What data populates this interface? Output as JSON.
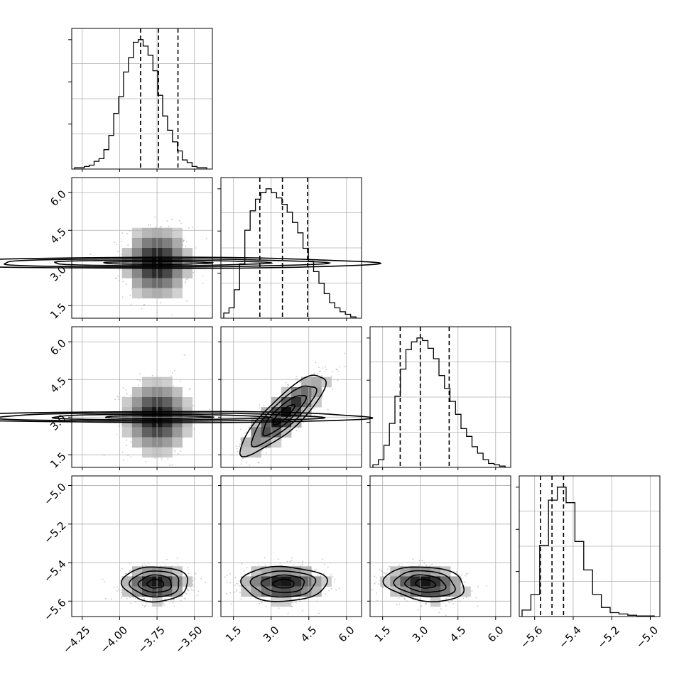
{
  "chart_data": {
    "type": "corner",
    "grid": true,
    "parameters": [
      {
        "range": [
          -4.32,
          -3.38
        ],
        "ticks": [
          -4.25,
          -4.0,
          -3.75,
          -3.5
        ],
        "tick_labels": [
          "−4.25",
          "−4.00",
          "−3.75",
          "−3.50"
        ],
        "quantiles": [
          -3.86,
          -3.74,
          -3.61
        ],
        "hist_peak": 0.42,
        "hist": [
          0.01,
          0.01,
          0.02,
          0.03,
          0.06,
          0.08,
          0.15,
          0.26,
          0.43,
          0.56,
          0.75,
          0.86,
          0.98,
          1.0,
          0.95,
          0.88,
          0.76,
          0.57,
          0.41,
          0.3,
          0.21,
          0.14,
          0.07,
          0.05,
          0.02,
          0.01,
          0.01
        ]
      },
      {
        "range": [
          1.0,
          6.6
        ],
        "ticks": [
          1.5,
          3.0,
          4.5,
          6.0
        ],
        "tick_labels": [
          "1.5",
          "3.0",
          "4.5",
          "6.0"
        ],
        "quantiles": [
          2.55,
          3.45,
          4.45
        ],
        "hist_peak": 0.5,
        "hist": [
          0.04,
          0.08,
          0.22,
          0.42,
          0.68,
          0.83,
          0.92,
          0.97,
          1.0,
          0.97,
          0.93,
          0.88,
          0.82,
          0.74,
          0.66,
          0.54,
          0.44,
          0.36,
          0.27,
          0.19,
          0.12,
          0.08,
          0.05,
          0.03,
          0.01
        ]
      },
      {
        "range": [
          1.0,
          6.6
        ],
        "ticks": [
          1.5,
          3.0,
          4.5,
          6.0
        ],
        "tick_labels": [
          "1.5",
          "3.0",
          "4.5",
          "6.0"
        ],
        "quantiles": [
          2.2,
          3.0,
          4.15
        ],
        "hist_peak": 0.45,
        "hist": [
          0.02,
          0.06,
          0.17,
          0.34,
          0.55,
          0.76,
          0.91,
          0.97,
          1.0,
          0.98,
          0.92,
          0.84,
          0.71,
          0.61,
          0.51,
          0.41,
          0.3,
          0.24,
          0.16,
          0.11,
          0.06,
          0.03,
          0.02,
          0.01
        ]
      },
      {
        "range": [
          -5.68,
          -4.95
        ],
        "ticks": [
          -5.6,
          -5.4,
          -5.2,
          -5.0
        ],
        "tick_labels": [
          "−5.6",
          "−5.4",
          "−5.2",
          "−5.0"
        ],
        "quantiles": [
          -5.57,
          -5.51,
          -5.45
        ],
        "hist_peak": 0.6,
        "hist": [
          0.05,
          0.17,
          0.55,
          0.9,
          1.0,
          0.88,
          0.58,
          0.36,
          0.17,
          0.07,
          0.03,
          0.02,
          0.01,
          0.005,
          0.005
        ]
      }
    ],
    "pairs": [
      {
        "row": 1,
        "col": 0,
        "mean": [
          -3.75,
          3.2
        ],
        "sd": [
          0.11,
          0.72
        ],
        "rho": 0.0
      },
      {
        "row": 2,
        "col": 0,
        "mean": [
          -3.75,
          3.0
        ],
        "sd": [
          0.11,
          0.72
        ],
        "rho": 0.0
      },
      {
        "row": 2,
        "col": 1,
        "mean": [
          3.5,
          3.1
        ],
        "sd": [
          0.85,
          0.8
        ],
        "rho": 0.85
      },
      {
        "row": 3,
        "col": 0,
        "mean": [
          -3.76,
          -5.51
        ],
        "sd": [
          0.11,
          0.045
        ],
        "rho": 0.0
      },
      {
        "row": 3,
        "col": 1,
        "mean": [
          3.5,
          -5.51
        ],
        "sd": [
          0.85,
          0.045
        ],
        "rho": 0.0
      },
      {
        "row": 3,
        "col": 2,
        "mean": [
          3.2,
          -5.51
        ],
        "sd": [
          0.8,
          0.045
        ],
        "rho": -0.2
      }
    ],
    "contour_levels_sigma": [
      0.5,
      1.0,
      1.5,
      2.0
    ]
  }
}
